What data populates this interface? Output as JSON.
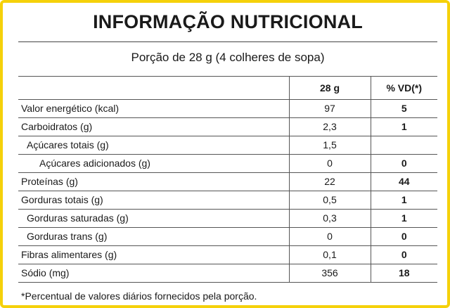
{
  "label": {
    "title": "INFORMAÇÃO NUTRICIONAL",
    "portion": "Porção de 28 g (4 colheres de sopa)",
    "headers": {
      "nutrient": "",
      "amount": "28 g",
      "vd": "% VD(*)"
    },
    "rows": [
      {
        "name": "Valor energético (kcal)",
        "amount": "97",
        "vd": "5"
      },
      {
        "name": "Carboidratos (g)",
        "amount": "2,3",
        "vd": "1"
      },
      {
        "name": "Açúcares totais (g)",
        "amount": "1,5",
        "vd": ""
      },
      {
        "name": "Açúcares adicionados (g)",
        "amount": "0",
        "vd": "0"
      },
      {
        "name": "Proteínas (g)",
        "amount": "22",
        "vd": "44"
      },
      {
        "name": "Gorduras totais (g)",
        "amount": "0,5",
        "vd": "1"
      },
      {
        "name": "Gorduras saturadas (g)",
        "amount": "0,3",
        "vd": "1"
      },
      {
        "name": "Gorduras trans (g)",
        "amount": "0",
        "vd": "0"
      },
      {
        "name": "Fibras alimentares (g)",
        "amount": "0,1",
        "vd": "0"
      },
      {
        "name": "Sódio (mg)",
        "amount": "356",
        "vd": "18"
      }
    ],
    "footnote": "*Percentual de valores diários fornecidos pela porção."
  },
  "colors": {
    "border": "#f5d10a",
    "lines": "#555555",
    "text": "#1a1a1a"
  }
}
